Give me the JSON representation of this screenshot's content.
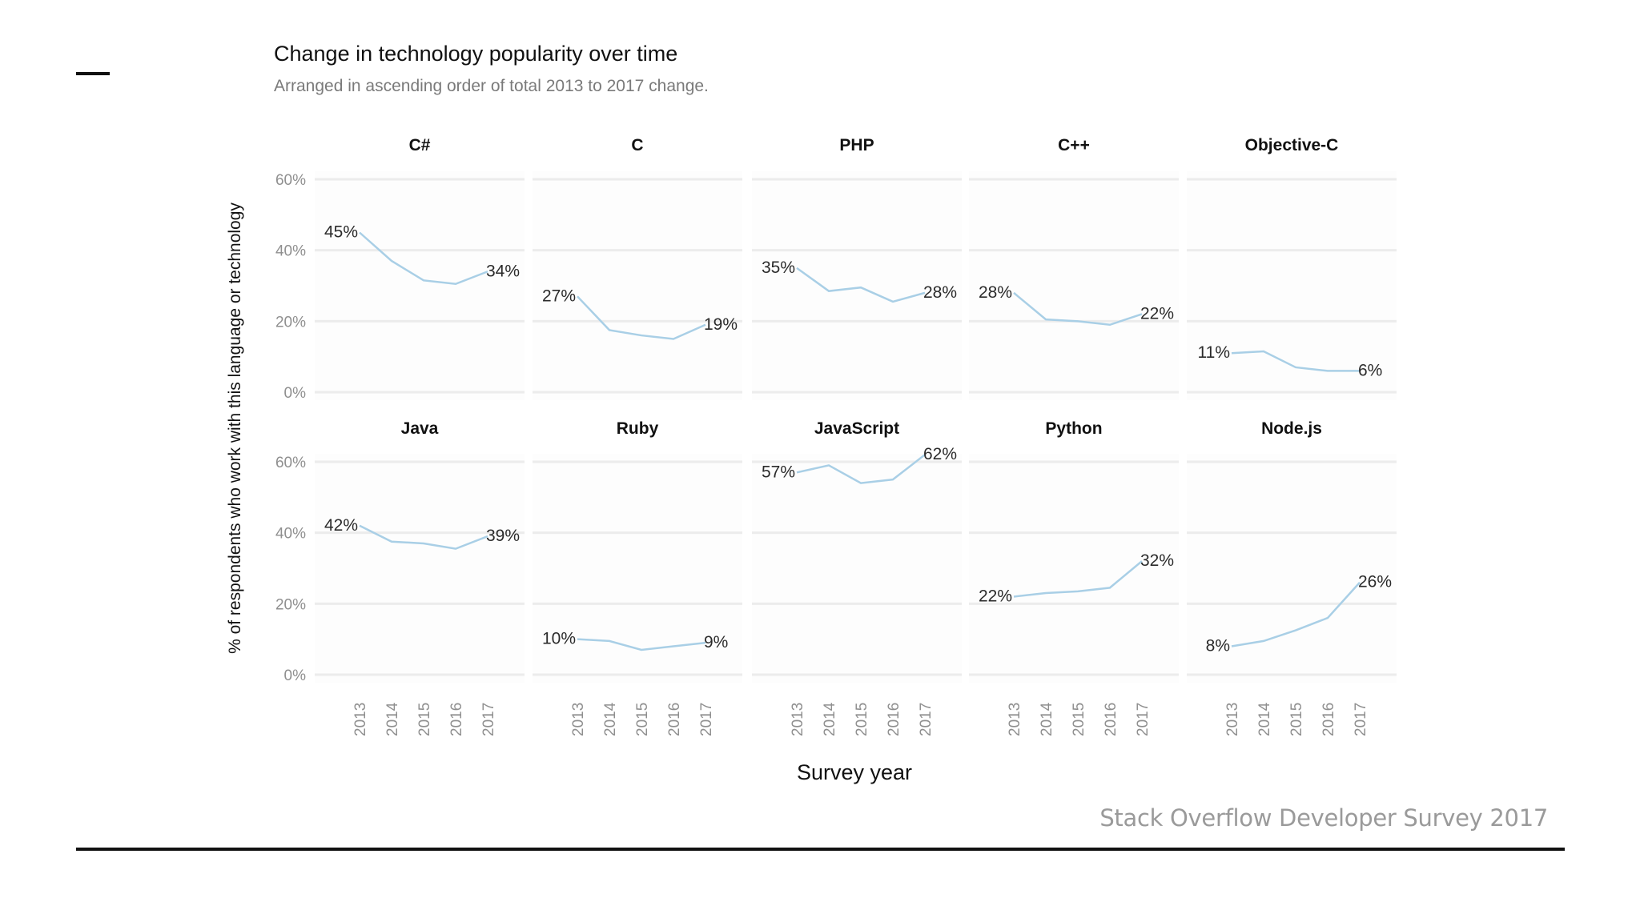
{
  "page": {
    "title": "Change in technology popularity over time",
    "subtitle": "Arranged in ascending order of total 2013 to 2017 change.",
    "credit": "Stack Overflow Developer Survey 2017"
  },
  "colors": {
    "line": "#a9cfe6",
    "grid": "#ececec",
    "panel_bg": "#fdfdfd",
    "tick": "#8f8f8f",
    "label": "#2b2b2b"
  },
  "chart_data": {
    "type": "line",
    "layout": "small-multiples",
    "x": [
      "2013",
      "2014",
      "2015",
      "2016",
      "2017"
    ],
    "xlabel": "Survey year",
    "ylabel": "% of respondents who work with this language or technology",
    "ylim": [
      0,
      60
    ],
    "yticks": [
      "0%",
      "20%",
      "40%",
      "60%"
    ],
    "grid": true,
    "series": [
      {
        "name": "C#",
        "values": [
          45,
          37,
          31.5,
          30.5,
          34
        ],
        "start_label": "45%",
        "end_label": "34%"
      },
      {
        "name": "C",
        "values": [
          27,
          17.5,
          16,
          15,
          19
        ],
        "start_label": "27%",
        "end_label": "19%"
      },
      {
        "name": "PHP",
        "values": [
          35,
          28.5,
          29.5,
          25.5,
          28
        ],
        "start_label": "35%",
        "end_label": "28%"
      },
      {
        "name": "C++",
        "values": [
          28,
          20.5,
          20,
          19,
          22
        ],
        "start_label": "28%",
        "end_label": "22%"
      },
      {
        "name": "Objective-C",
        "values": [
          11,
          11.5,
          7,
          6,
          6
        ],
        "start_label": "11%",
        "end_label": "6%"
      },
      {
        "name": "Java",
        "values": [
          42,
          37.5,
          37,
          35.5,
          39
        ],
        "start_label": "42%",
        "end_label": "39%"
      },
      {
        "name": "Ruby",
        "values": [
          10,
          9.5,
          7,
          8,
          9
        ],
        "start_label": "10%",
        "end_label": "9%"
      },
      {
        "name": "JavaScript",
        "values": [
          57,
          59,
          54,
          55,
          62
        ],
        "start_label": "57%",
        "end_label": "62%"
      },
      {
        "name": "Python",
        "values": [
          22,
          23,
          23.5,
          24.5,
          32
        ],
        "start_label": "22%",
        "end_label": "32%"
      },
      {
        "name": "Node.js",
        "values": [
          8,
          9.5,
          12.5,
          16,
          26
        ],
        "start_label": "8%",
        "end_label": "26%"
      }
    ]
  }
}
